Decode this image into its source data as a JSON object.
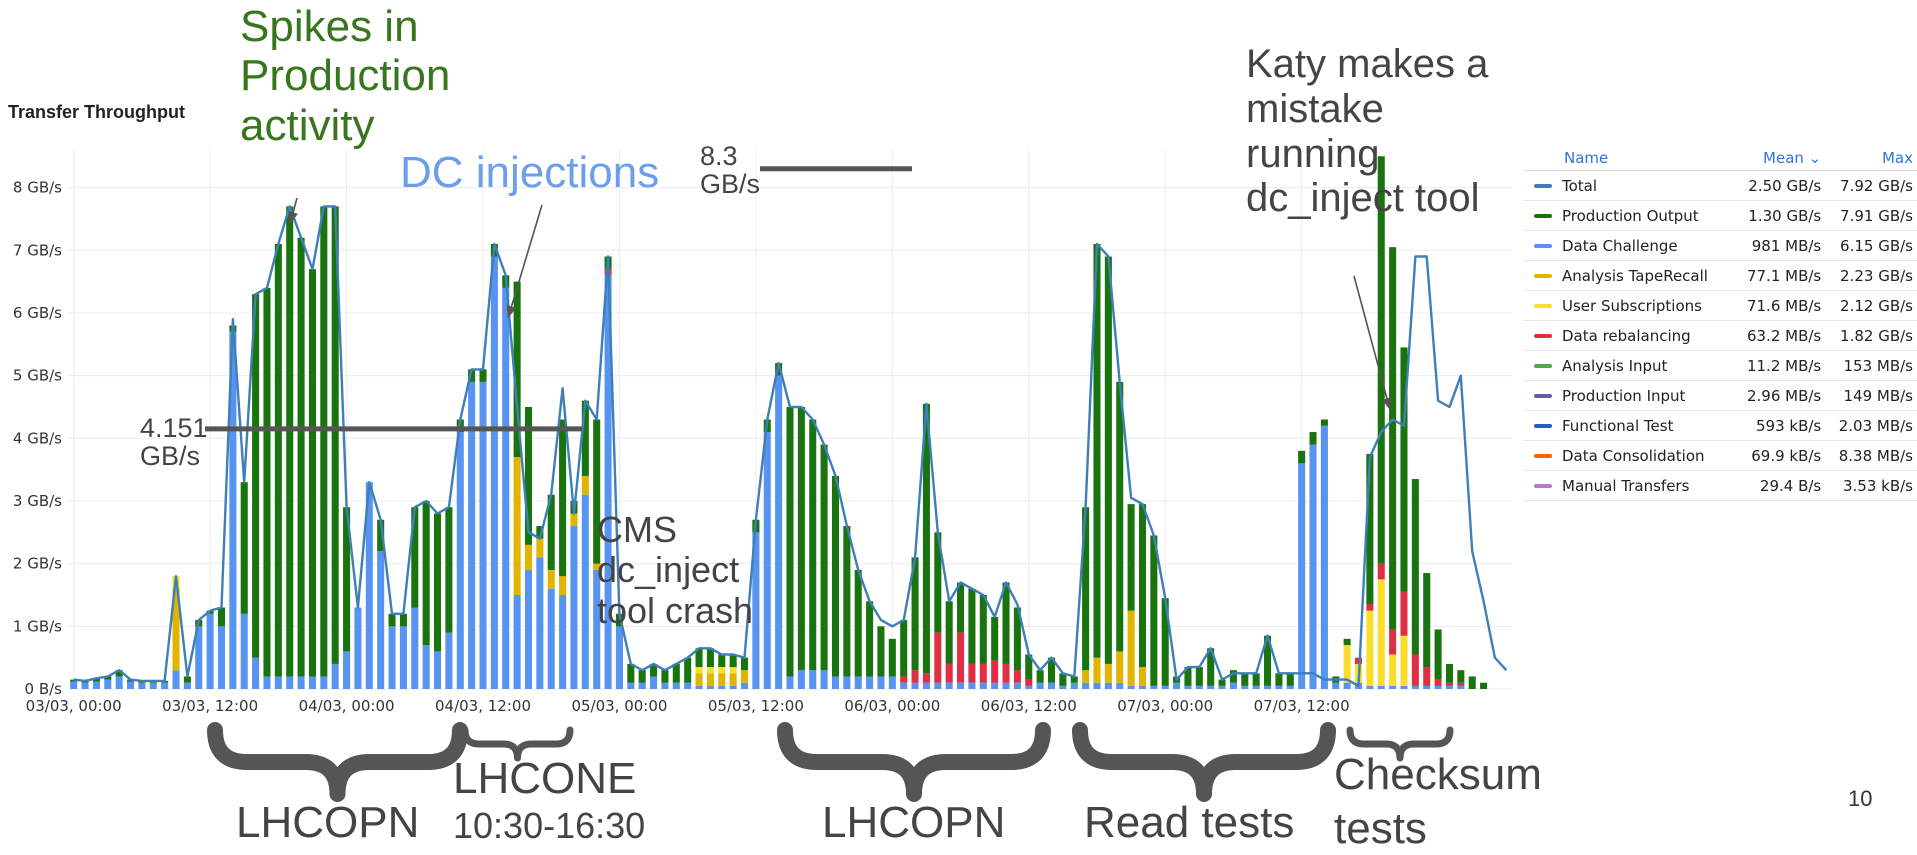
{
  "panel": {
    "title": "Transfer Throughput"
  },
  "chart_data": {
    "type": "bar",
    "stacked": true,
    "title": "Transfer Throughput",
    "y_unit": "GB/s",
    "ylim": [
      0,
      8.6
    ],
    "y_ticks": [
      0,
      1,
      2,
      3,
      4,
      5,
      6,
      7,
      8
    ],
    "y_tick_labels": [
      "0 B/s",
      "1 GB/s",
      "2 GB/s",
      "3 GB/s",
      "4 GB/s",
      "5 GB/s",
      "6 GB/s",
      "7 GB/s",
      "8 GB/s"
    ],
    "x_tick_labels": [
      "03/03, 00:00",
      "03/03, 12:00",
      "04/03, 00:00",
      "04/03, 12:00",
      "05/03, 00:00",
      "05/03, 12:00",
      "06/03, 00:00",
      "06/03, 12:00",
      "07/03, 00:00",
      "07/03, 12:00"
    ],
    "x_tick_at_bar": [
      0,
      12,
      24,
      36,
      48,
      60,
      72,
      84,
      96,
      108
    ],
    "hours_per_bar": 1,
    "grid": true,
    "series": [
      {
        "name": "Data Challenge",
        "color": "#5794f2",
        "values": [
          0.12,
          0.1,
          0.12,
          0.15,
          0.2,
          0.12,
          0.1,
          0.1,
          0.1,
          0.3,
          0.1,
          1.0,
          1.2,
          1.0,
          5.7,
          1.2,
          0.5,
          0.2,
          0.2,
          0.2,
          0.2,
          0.2,
          0.2,
          0.4,
          0.6,
          1.3,
          3.3,
          2.2,
          1.0,
          1.0,
          1.3,
          0.7,
          0.6,
          0.9,
          4.1,
          4.9,
          4.9,
          6.9,
          6.4,
          1.5,
          1.9,
          2.1,
          1.6,
          1.5,
          2.6,
          3.1,
          1.9,
          6.6,
          1.0,
          0.1,
          0.1,
          0.2,
          0.1,
          0.1,
          0.1,
          0.05,
          0.05,
          0.05,
          0.05,
          0.1,
          2.5,
          4.1,
          5.0,
          0.2,
          0.3,
          0.3,
          0.3,
          0.2,
          0.2,
          0.2,
          0.2,
          0.2,
          0.2,
          0.1,
          0.1,
          0.1,
          0.1,
          0.1,
          0.1,
          0.1,
          0.1,
          0.1,
          0.1,
          0.1,
          0.05,
          0.1,
          0.1,
          0.05,
          0.1,
          0.1,
          0.1,
          0.1,
          0.1,
          0.05,
          0.05,
          0.05,
          0.05,
          0.1,
          0.05,
          0.05,
          0.05,
          0.05,
          0.1,
          0.05,
          0.05,
          0.05,
          0.05,
          0.05,
          3.6,
          3.9,
          4.2,
          0.1,
          0.1,
          0.1,
          0.05,
          0.05,
          0.05,
          0.05,
          0.05,
          0.05,
          0.05,
          0.05,
          0.05
        ]
      },
      {
        "name": "Analysis TapeRecall",
        "color": "#e0b400",
        "values": [
          0,
          0,
          0,
          0,
          0,
          0,
          0,
          0,
          0,
          1.3,
          0,
          0,
          0,
          0,
          0,
          0,
          0,
          0,
          0,
          0,
          0,
          0,
          0,
          0,
          0,
          0,
          0,
          0,
          0,
          0,
          0,
          0,
          0,
          0,
          0,
          0,
          0,
          0,
          0,
          2.2,
          0.4,
          0.3,
          0.3,
          0.3,
          0.2,
          0.3,
          0.1,
          0,
          0,
          0,
          0,
          0,
          0,
          0,
          0,
          0.2,
          0.2,
          0.2,
          0.2,
          0.2,
          0,
          0,
          0,
          0,
          0,
          0,
          0,
          0,
          0,
          0,
          0,
          0,
          0,
          0,
          0,
          0,
          0,
          0,
          0,
          0,
          0,
          0,
          0,
          0,
          0,
          0,
          0,
          0,
          0,
          0.2,
          0.4,
          0.3,
          0.5,
          1.2,
          0.3,
          0,
          0,
          0,
          0,
          0,
          0,
          0,
          0,
          0,
          0,
          0,
          0,
          0,
          0,
          0,
          0,
          0,
          0,
          0,
          0,
          0,
          0,
          0,
          0,
          0,
          0,
          0,
          0
        ]
      },
      {
        "name": "User Subscriptions",
        "color": "#fade2a",
        "values": [
          0,
          0,
          0,
          0,
          0,
          0,
          0,
          0,
          0,
          0.2,
          0,
          0,
          0,
          0,
          0,
          0,
          0,
          0,
          0,
          0,
          0,
          0,
          0,
          0,
          0,
          0,
          0,
          0,
          0,
          0,
          0,
          0,
          0,
          0,
          0,
          0,
          0,
          0,
          0,
          0,
          0,
          0,
          0,
          0,
          0,
          0,
          0,
          0,
          0,
          0,
          0,
          0,
          0,
          0,
          0,
          0.1,
          0.1,
          0.1,
          0.1,
          0,
          0,
          0,
          0,
          0,
          0,
          0,
          0,
          0,
          0,
          0,
          0,
          0,
          0,
          0,
          0,
          0,
          0,
          0,
          0,
          0,
          0,
          0,
          0,
          0,
          0,
          0,
          0,
          0,
          0,
          0,
          0,
          0,
          0,
          0,
          0,
          0,
          0,
          0,
          0,
          0,
          0,
          0,
          0,
          0,
          0,
          0,
          0,
          0,
          0,
          0,
          0,
          0,
          0.6,
          0.3,
          1.2,
          1.7,
          0.5,
          0.8,
          0,
          0,
          0,
          0,
          0
        ]
      },
      {
        "name": "Data rebalancing",
        "color": "#e02f44",
        "values": [
          0,
          0,
          0,
          0,
          0,
          0,
          0,
          0,
          0,
          0,
          0,
          0,
          0,
          0,
          0,
          0,
          0,
          0,
          0,
          0,
          0,
          0,
          0,
          0,
          0,
          0,
          0,
          0,
          0,
          0,
          0,
          0,
          0,
          0,
          0,
          0,
          0,
          0,
          0,
          0,
          0,
          0,
          0,
          0,
          0,
          0,
          0,
          0.1,
          0,
          0,
          0,
          0,
          0,
          0,
          0,
          0,
          0,
          0,
          0,
          0,
          0,
          0,
          0,
          0,
          0,
          0,
          0,
          0,
          0,
          0,
          0,
          0,
          0,
          0.1,
          0.2,
          0.15,
          0.8,
          0.3,
          0.8,
          0.3,
          0.3,
          0.35,
          0.3,
          0.2,
          0.1,
          0,
          0,
          0,
          0,
          0,
          0,
          0,
          0,
          0,
          0,
          0,
          0,
          0,
          0,
          0,
          0,
          0,
          0,
          0,
          0,
          0,
          0,
          0,
          0,
          0,
          0,
          0,
          0,
          0.1,
          0.1,
          0.25,
          0.4,
          0.7,
          0.5,
          0.3,
          0.1,
          0.05,
          0.05
        ]
      },
      {
        "name": "Production Output",
        "color": "#19730e",
        "values": [
          0.03,
          0.03,
          0.05,
          0.05,
          0.1,
          0.03,
          0.03,
          0.03,
          0.03,
          0,
          0.1,
          0.1,
          0.05,
          0.3,
          0.1,
          2.1,
          5.8,
          6.2,
          6.9,
          7.5,
          7.0,
          6.5,
          7.5,
          7.3,
          2.3,
          0,
          0,
          0.5,
          0.2,
          0.2,
          1.6,
          2.3,
          2.2,
          2.0,
          0.2,
          0.2,
          0.2,
          0.2,
          0.2,
          2.8,
          2.2,
          0.2,
          1.2,
          2.5,
          0.2,
          1.2,
          2.3,
          0.2,
          0.2,
          0.3,
          0.2,
          0.2,
          0.2,
          0.3,
          0.4,
          0.3,
          0.3,
          0.2,
          0.2,
          0.2,
          0.2,
          0.2,
          0.2,
          4.3,
          4.2,
          4.0,
          3.6,
          3.2,
          2.4,
          1.7,
          1.2,
          0.8,
          0.6,
          0.9,
          1.8,
          4.3,
          1.6,
          1.0,
          0.8,
          1.2,
          1.1,
          0.7,
          1.3,
          1.0,
          0.4,
          0.2,
          0.4,
          0.2,
          0.1,
          2.6,
          6.6,
          6.5,
          4.3,
          1.7,
          2.6,
          2.4,
          1.4,
          0.1,
          0.3,
          0.3,
          0.6,
          0.1,
          0.2,
          0.2,
          0.2,
          0.8,
          0.2,
          0.2,
          0.2,
          0.2,
          0.1,
          0.1,
          0.1,
          0,
          2.4,
          6.5,
          6.1,
          3.9,
          2.8,
          1.5,
          0.8,
          0.3,
          0.2,
          0.2,
          0.1
        ]
      }
    ],
    "total_line": {
      "name": "Total",
      "color": "#3f7fb8",
      "values": [
        0.15,
        0.13,
        0.17,
        0.2,
        0.3,
        0.15,
        0.13,
        0.13,
        0.13,
        1.8,
        0.2,
        1.1,
        1.25,
        1.3,
        5.9,
        3.3,
        6.3,
        6.4,
        7.1,
        7.7,
        7.2,
        6.7,
        7.7,
        7.7,
        2.9,
        1.3,
        3.3,
        2.7,
        1.2,
        1.2,
        2.9,
        3.0,
        2.8,
        2.9,
        4.3,
        5.1,
        5.1,
        7.1,
        6.6,
        4.5,
        2.5,
        2.4,
        3.1,
        4.8,
        2.8,
        4.6,
        4.3,
        6.9,
        1.2,
        0.4,
        0.3,
        0.4,
        0.3,
        0.4,
        0.5,
        0.65,
        0.65,
        0.55,
        0.55,
        0.5,
        2.7,
        4.3,
        5.2,
        4.5,
        4.5,
        4.3,
        3.9,
        3.4,
        2.6,
        1.9,
        1.4,
        1.1,
        1.0,
        1.1,
        2.1,
        4.55,
        2.5,
        1.4,
        1.7,
        1.6,
        1.5,
        1.15,
        1.7,
        1.35,
        0.55,
        0.3,
        0.5,
        0.25,
        0.2,
        2.9,
        7.1,
        6.9,
        4.9,
        3.05,
        2.95,
        2.45,
        1.45,
        0.15,
        0.35,
        0.35,
        0.65,
        0.15,
        0.25,
        0.25,
        0.25,
        0.85,
        0.25,
        0.25,
        0.25,
        0.25,
        0.15,
        0.15,
        0.15,
        0.05,
        3.7,
        4.1,
        4.3,
        4.2,
        6.9,
        6.9,
        4.6,
        4.5,
        5.0,
        2.2,
        1.4,
        0.5,
        0.3
      ]
    }
  },
  "legend": {
    "headers": {
      "name": "Name",
      "mean": "Mean ⌄",
      "max": "Max"
    },
    "rows": [
      {
        "name": "Total",
        "color": "#3f7fb8",
        "mean": "2.50 GB/s",
        "max": "7.92 GB/s"
      },
      {
        "name": "Production Output",
        "color": "#19730e",
        "mean": "1.30 GB/s",
        "max": "7.91 GB/s"
      },
      {
        "name": "Data Challenge",
        "color": "#5794f2",
        "mean": "981 MB/s",
        "max": "6.15 GB/s"
      },
      {
        "name": "Analysis TapeRecall",
        "color": "#e0b400",
        "mean": "77.1 MB/s",
        "max": "2.23 GB/s"
      },
      {
        "name": "User Subscriptions",
        "color": "#fade2a",
        "mean": "71.6 MB/s",
        "max": "2.12 GB/s"
      },
      {
        "name": "Data rebalancing",
        "color": "#e02f44",
        "mean": "63.2 MB/s",
        "max": "1.82 GB/s"
      },
      {
        "name": "Analysis Input",
        "color": "#56a64b",
        "mean": "11.2 MB/s",
        "max": "153 MB/s"
      },
      {
        "name": "Production Input",
        "color": "#6e5a9e",
        "mean": "2.96 MB/s",
        "max": "149 MB/s"
      },
      {
        "name": "Functional Test",
        "color": "#1f60c4",
        "mean": "593 kB/s",
        "max": "2.03 MB/s"
      },
      {
        "name": "Data Consolidation",
        "color": "#fa6400",
        "mean": "69.9 kB/s",
        "max": "8.38 MB/s"
      },
      {
        "name": "Manual Transfers",
        "color": "#b877d9",
        "mean": "29.4 B/s",
        "max": "3.53 kB/s"
      }
    ]
  },
  "annotations": {
    "spikes": [
      "Spikes in",
      "Production",
      "activity"
    ],
    "dc_injections": "DC injections",
    "peak_rate": [
      "8.3",
      "GB/s"
    ],
    "avg_rate": [
      "4.151",
      "GB/s"
    ],
    "crash": [
      "CMS",
      "dc_inject",
      "tool crash"
    ],
    "katy": [
      "Katy makes a",
      "mistake",
      "running",
      "dc_inject tool"
    ],
    "brace_labels": {
      "lhcopn_1": "LHCOPN",
      "lhcone_title": "LHCONE",
      "lhcone_time": "10:30-16:30",
      "lhcopn_2": "LHCOPN",
      "read_tests": "Read tests",
      "checksum_1": "Checksum",
      "checksum_2": "tests"
    },
    "reference_lines": [
      {
        "label": "8.3 GB/s",
        "value": 8.3
      },
      {
        "label": "4.151 GB/s",
        "value": 4.151
      }
    ]
  },
  "page_number": "10"
}
